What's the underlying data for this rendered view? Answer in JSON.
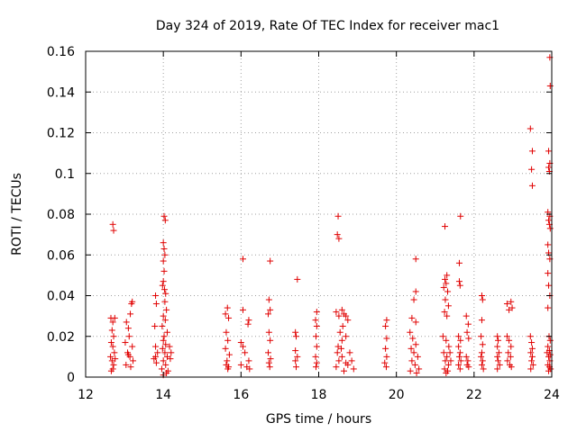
{
  "chart_data": {
    "type": "scatter",
    "title": "Day 324 of 2019, Rate Of TEC Index for receiver mac1",
    "xlabel": "GPS time / hours",
    "ylabel": "ROTI / TECUs",
    "xlim": [
      12,
      24
    ],
    "ylim": [
      0,
      0.16
    ],
    "x_ticks": [
      12,
      14,
      16,
      18,
      20,
      22,
      24
    ],
    "y_ticks": [
      0,
      0.02,
      0.04,
      0.06,
      0.08,
      0.1,
      0.12,
      0.14,
      0.16
    ],
    "x_tick_labels": [
      "12",
      "14",
      "16",
      "18",
      "20",
      "22",
      "24"
    ],
    "y_tick_labels": [
      "0",
      "0.02",
      "0.04",
      "0.06",
      "0.08",
      "0.1",
      "0.12",
      "0.14",
      "0.16"
    ],
    "grid": true,
    "marker": "+",
    "marker_color": "#e00000",
    "series": [
      {
        "name": "mac1",
        "points": [
          [
            12.7,
            0.075
          ],
          [
            12.72,
            0.072
          ],
          [
            12.65,
            0.029
          ],
          [
            12.7,
            0.027
          ],
          [
            12.75,
            0.029
          ],
          [
            12.68,
            0.023
          ],
          [
            12.72,
            0.02
          ],
          [
            12.66,
            0.017
          ],
          [
            12.7,
            0.015
          ],
          [
            12.74,
            0.012
          ],
          [
            12.64,
            0.01
          ],
          [
            12.68,
            0.008
          ],
          [
            12.72,
            0.006
          ],
          [
            12.7,
            0.004
          ],
          [
            12.76,
            0.009
          ],
          [
            12.66,
            0.003
          ],
          [
            13.05,
            0.027
          ],
          [
            13.1,
            0.024
          ],
          [
            13.2,
            0.037
          ],
          [
            13.18,
            0.036
          ],
          [
            13.15,
            0.031
          ],
          [
            13.12,
            0.02
          ],
          [
            13.02,
            0.017
          ],
          [
            13.2,
            0.015
          ],
          [
            13.08,
            0.012
          ],
          [
            13.14,
            0.01
          ],
          [
            13.22,
            0.008
          ],
          [
            13.04,
            0.006
          ],
          [
            13.16,
            0.005
          ],
          [
            13.1,
            0.011
          ],
          [
            13.8,
            0.04
          ],
          [
            13.82,
            0.036
          ],
          [
            13.78,
            0.025
          ],
          [
            13.8,
            0.015
          ],
          [
            13.85,
            0.012
          ],
          [
            13.76,
            0.009
          ],
          [
            13.82,
            0.007
          ],
          [
            13.8,
            0.01
          ],
          [
            14.02,
            0.079
          ],
          [
            14.05,
            0.077
          ],
          [
            14.0,
            0.066
          ],
          [
            14.02,
            0.063
          ],
          [
            14.04,
            0.06
          ],
          [
            14.0,
            0.057
          ],
          [
            14.02,
            0.052
          ],
          [
            14.0,
            0.047
          ],
          [
            13.98,
            0.045
          ],
          [
            14.03,
            0.043
          ],
          [
            14.06,
            0.041
          ],
          [
            14.04,
            0.037
          ],
          [
            14.08,
            0.033
          ],
          [
            14.0,
            0.03
          ],
          [
            14.05,
            0.028
          ],
          [
            13.97,
            0.025
          ],
          [
            14.1,
            0.022
          ],
          [
            14.02,
            0.02
          ],
          [
            14.0,
            0.018
          ],
          [
            14.06,
            0.016
          ],
          [
            13.98,
            0.014
          ],
          [
            14.04,
            0.012
          ],
          [
            14.1,
            0.01
          ],
          [
            14.0,
            0.008
          ],
          [
            14.06,
            0.006
          ],
          [
            13.96,
            0.004
          ],
          [
            14.12,
            0.003
          ],
          [
            14.2,
            0.012
          ],
          [
            14.18,
            0.009
          ],
          [
            14.16,
            0.015
          ],
          [
            14.0,
            0.001
          ],
          [
            14.08,
            0.002
          ],
          [
            15.65,
            0.034
          ],
          [
            15.6,
            0.031
          ],
          [
            15.68,
            0.029
          ],
          [
            15.62,
            0.022
          ],
          [
            15.66,
            0.018
          ],
          [
            15.6,
            0.014
          ],
          [
            15.7,
            0.011
          ],
          [
            15.64,
            0.008
          ],
          [
            15.62,
            0.006
          ],
          [
            15.68,
            0.005
          ],
          [
            15.66,
            0.004
          ],
          [
            16.05,
            0.058
          ],
          [
            16.05,
            0.033
          ],
          [
            16.2,
            0.028
          ],
          [
            16.18,
            0.026
          ],
          [
            16.0,
            0.017
          ],
          [
            16.05,
            0.015
          ],
          [
            16.1,
            0.012
          ],
          [
            16.2,
            0.008
          ],
          [
            16.0,
            0.006
          ],
          [
            16.15,
            0.005
          ],
          [
            16.22,
            0.004
          ],
          [
            16.75,
            0.057
          ],
          [
            16.72,
            0.038
          ],
          [
            16.75,
            0.033
          ],
          [
            16.7,
            0.031
          ],
          [
            16.72,
            0.022
          ],
          [
            16.75,
            0.018
          ],
          [
            16.7,
            0.012
          ],
          [
            16.76,
            0.009
          ],
          [
            16.72,
            0.007
          ],
          [
            16.74,
            0.005
          ],
          [
            17.45,
            0.048
          ],
          [
            17.4,
            0.022
          ],
          [
            17.42,
            0.02
          ],
          [
            17.4,
            0.013
          ],
          [
            17.45,
            0.01
          ],
          [
            17.4,
            0.008
          ],
          [
            17.42,
            0.005
          ],
          [
            17.95,
            0.032
          ],
          [
            17.92,
            0.028
          ],
          [
            17.95,
            0.025
          ],
          [
            17.93,
            0.02
          ],
          [
            17.95,
            0.015
          ],
          [
            17.92,
            0.01
          ],
          [
            17.95,
            0.007
          ],
          [
            17.93,
            0.005
          ],
          [
            18.5,
            0.079
          ],
          [
            18.48,
            0.07
          ],
          [
            18.52,
            0.068
          ],
          [
            18.45,
            0.032
          ],
          [
            18.52,
            0.03
          ],
          [
            18.6,
            0.033
          ],
          [
            18.65,
            0.031
          ],
          [
            18.7,
            0.03
          ],
          [
            18.75,
            0.028
          ],
          [
            18.62,
            0.025
          ],
          [
            18.55,
            0.022
          ],
          [
            18.7,
            0.02
          ],
          [
            18.6,
            0.018
          ],
          [
            18.5,
            0.015
          ],
          [
            18.48,
            0.012
          ],
          [
            18.6,
            0.01
          ],
          [
            18.52,
            0.008
          ],
          [
            18.7,
            0.007
          ],
          [
            18.8,
            0.012
          ],
          [
            18.75,
            0.006
          ],
          [
            18.45,
            0.005
          ],
          [
            18.85,
            0.008
          ],
          [
            18.9,
            0.004
          ],
          [
            18.65,
            0.003
          ],
          [
            18.58,
            0.014
          ],
          [
            19.75,
            0.028
          ],
          [
            19.72,
            0.025
          ],
          [
            19.75,
            0.019
          ],
          [
            19.72,
            0.014
          ],
          [
            19.75,
            0.01
          ],
          [
            19.7,
            0.007
          ],
          [
            19.74,
            0.005
          ],
          [
            20.5,
            0.058
          ],
          [
            20.5,
            0.042
          ],
          [
            20.45,
            0.038
          ],
          [
            20.4,
            0.029
          ],
          [
            20.5,
            0.027
          ],
          [
            20.35,
            0.022
          ],
          [
            20.42,
            0.019
          ],
          [
            20.5,
            0.016
          ],
          [
            20.38,
            0.014
          ],
          [
            20.45,
            0.012
          ],
          [
            20.55,
            0.01
          ],
          [
            20.4,
            0.008
          ],
          [
            20.48,
            0.006
          ],
          [
            20.58,
            0.004
          ],
          [
            20.36,
            0.003
          ],
          [
            20.52,
            0.002
          ],
          [
            21.25,
            0.074
          ],
          [
            21.3,
            0.05
          ],
          [
            21.25,
            0.048
          ],
          [
            21.28,
            0.046
          ],
          [
            21.22,
            0.044
          ],
          [
            21.32,
            0.042
          ],
          [
            21.26,
            0.038
          ],
          [
            21.34,
            0.035
          ],
          [
            21.24,
            0.032
          ],
          [
            21.3,
            0.03
          ],
          [
            21.2,
            0.02
          ],
          [
            21.28,
            0.018
          ],
          [
            21.35,
            0.015
          ],
          [
            21.22,
            0.012
          ],
          [
            21.3,
            0.01
          ],
          [
            21.26,
            0.008
          ],
          [
            21.34,
            0.006
          ],
          [
            21.24,
            0.004
          ],
          [
            21.32,
            0.003
          ],
          [
            21.28,
            0.002
          ],
          [
            21.38,
            0.012
          ],
          [
            21.4,
            0.008
          ],
          [
            21.65,
            0.079
          ],
          [
            21.62,
            0.056
          ],
          [
            21.62,
            0.047
          ],
          [
            21.64,
            0.045
          ],
          [
            21.6,
            0.02
          ],
          [
            21.65,
            0.018
          ],
          [
            21.6,
            0.015
          ],
          [
            21.64,
            0.012
          ],
          [
            21.62,
            0.01
          ],
          [
            21.66,
            0.008
          ],
          [
            21.6,
            0.006
          ],
          [
            21.64,
            0.004
          ],
          [
            21.8,
            0.03
          ],
          [
            21.85,
            0.026
          ],
          [
            21.82,
            0.022
          ],
          [
            21.86,
            0.019
          ],
          [
            21.8,
            0.01
          ],
          [
            21.84,
            0.008
          ],
          [
            21.82,
            0.006
          ],
          [
            21.86,
            0.005
          ],
          [
            22.2,
            0.04
          ],
          [
            22.22,
            0.038
          ],
          [
            22.2,
            0.028
          ],
          [
            22.18,
            0.02
          ],
          [
            22.22,
            0.016
          ],
          [
            22.2,
            0.012
          ],
          [
            22.18,
            0.01
          ],
          [
            22.22,
            0.008
          ],
          [
            22.2,
            0.006
          ],
          [
            22.24,
            0.004
          ],
          [
            22.6,
            0.02
          ],
          [
            22.62,
            0.018
          ],
          [
            22.6,
            0.015
          ],
          [
            22.64,
            0.012
          ],
          [
            22.6,
            0.01
          ],
          [
            22.62,
            0.008
          ],
          [
            22.66,
            0.006
          ],
          [
            22.6,
            0.004
          ],
          [
            22.85,
            0.036
          ],
          [
            22.9,
            0.033
          ],
          [
            22.95,
            0.037
          ],
          [
            22.98,
            0.034
          ],
          [
            22.85,
            0.02
          ],
          [
            22.9,
            0.018
          ],
          [
            22.95,
            0.015
          ],
          [
            22.88,
            0.012
          ],
          [
            22.94,
            0.01
          ],
          [
            22.86,
            0.008
          ],
          [
            22.92,
            0.006
          ],
          [
            22.96,
            0.005
          ],
          [
            23.45,
            0.122
          ],
          [
            23.5,
            0.111
          ],
          [
            23.48,
            0.102
          ],
          [
            23.5,
            0.094
          ],
          [
            23.45,
            0.02
          ],
          [
            23.48,
            0.017
          ],
          [
            23.5,
            0.014
          ],
          [
            23.46,
            0.012
          ],
          [
            23.5,
            0.01
          ],
          [
            23.48,
            0.008
          ],
          [
            23.52,
            0.006
          ],
          [
            23.46,
            0.004
          ],
          [
            23.95,
            0.157
          ],
          [
            23.96,
            0.143
          ],
          [
            23.92,
            0.111
          ],
          [
            23.95,
            0.105
          ],
          [
            23.92,
            0.103
          ],
          [
            23.94,
            0.101
          ],
          [
            23.9,
            0.081
          ],
          [
            23.95,
            0.079
          ],
          [
            23.92,
            0.077
          ],
          [
            23.94,
            0.075
          ],
          [
            23.96,
            0.073
          ],
          [
            23.9,
            0.065
          ],
          [
            23.92,
            0.061
          ],
          [
            23.95,
            0.058
          ],
          [
            23.9,
            0.051
          ],
          [
            23.92,
            0.045
          ],
          [
            23.95,
            0.04
          ],
          [
            23.9,
            0.034
          ],
          [
            23.93,
            0.02
          ],
          [
            23.96,
            0.018
          ],
          [
            23.9,
            0.015
          ],
          [
            23.94,
            0.013
          ],
          [
            23.96,
            0.011
          ],
          [
            23.92,
            0.01
          ],
          [
            23.95,
            0.008
          ],
          [
            23.9,
            0.006
          ],
          [
            23.94,
            0.005
          ],
          [
            23.97,
            0.004
          ],
          [
            23.92,
            0.003
          ],
          [
            23.88,
            0.012
          ]
        ]
      }
    ]
  }
}
